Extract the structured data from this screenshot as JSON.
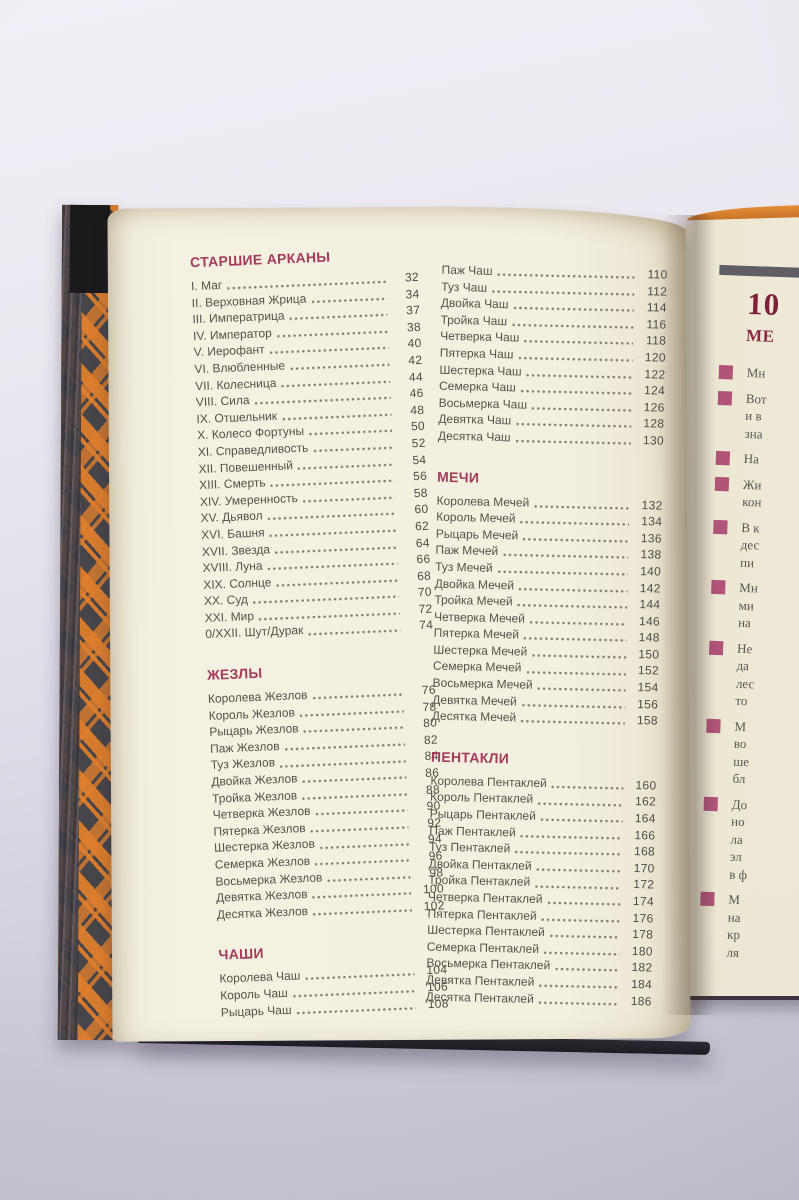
{
  "photo": {
    "background_top": "#f1eff6",
    "background_bottom": "#c3c0cf"
  },
  "book": {
    "page_color": "#f4f0df",
    "next_page_color": "#ece7d3",
    "cover": {
      "plaid_orange": "#dd7e2d",
      "plaid_base": "#46454a",
      "spine_black": "#1a191b",
      "top_edge_orange": "#d9822f"
    }
  },
  "toc": {
    "accent_color": "#a53a5b",
    "text_color": "#55524c",
    "columns": [
      {
        "sections": [
          {
            "title": "СТАРШИЕ АРКАНЫ",
            "items": [
              {
                "label": "I. Маг",
                "page": "32"
              },
              {
                "label": "II. Верховная Жрица",
                "page": "34"
              },
              {
                "label": "III. Императрица",
                "page": "37"
              },
              {
                "label": "IV. Император",
                "page": "38"
              },
              {
                "label": "V. Иерофант",
                "page": "40"
              },
              {
                "label": "VI. Влюбленные",
                "page": "42"
              },
              {
                "label": "VII. Колесница",
                "page": "44"
              },
              {
                "label": "VIII. Сила",
                "page": "46"
              },
              {
                "label": "IX. Отшельник",
                "page": "48"
              },
              {
                "label": "X. Колесо Фортуны",
                "page": "50"
              },
              {
                "label": "XI. Справедливость",
                "page": "52"
              },
              {
                "label": "XII. Повешенный",
                "page": "54"
              },
              {
                "label": "XIII. Смерть",
                "page": "56"
              },
              {
                "label": "XIV. Умеренность",
                "page": "58"
              },
              {
                "label": "XV. Дьявол",
                "page": "60"
              },
              {
                "label": "XVI. Башня",
                "page": "62"
              },
              {
                "label": "XVII. Звезда",
                "page": "64"
              },
              {
                "label": "XVIII. Луна",
                "page": "66"
              },
              {
                "label": "XIX. Солнце",
                "page": "68"
              },
              {
                "label": "XX. Суд",
                "page": "70"
              },
              {
                "label": "XXI. Мир",
                "page": "72"
              },
              {
                "label": "0/XXII. Шут/Дурак",
                "page": "74"
              }
            ]
          },
          {
            "title": "ЖЕЗЛЫ",
            "items": [
              {
                "label": "Королева Жезлов",
                "page": "76"
              },
              {
                "label": "Король Жезлов",
                "page": "78"
              },
              {
                "label": "Рыцарь Жезлов",
                "page": "80"
              },
              {
                "label": "Паж Жезлов",
                "page": "82"
              },
              {
                "label": "Туз Жезлов",
                "page": "84"
              },
              {
                "label": "Двойка Жезлов",
                "page": "86"
              },
              {
                "label": "Тройка Жезлов",
                "page": "88"
              },
              {
                "label": "Четверка Жезлов",
                "page": "90"
              },
              {
                "label": "Пятерка Жезлов",
                "page": "92"
              },
              {
                "label": "Шестерка Жезлов",
                "page": "94"
              },
              {
                "label": "Семерка Жезлов",
                "page": "96"
              },
              {
                "label": "Восьмерка Жезлов",
                "page": "98"
              },
              {
                "label": "Девятка Жезлов",
                "page": "100"
              },
              {
                "label": "Десятка Жезлов",
                "page": "102"
              }
            ]
          },
          {
            "title": "ЧАШИ",
            "items": [
              {
                "label": "Королева Чаш",
                "page": "104"
              },
              {
                "label": "Король Чаш",
                "page": "106"
              },
              {
                "label": "Рыцарь Чаш",
                "page": "108"
              }
            ]
          }
        ]
      },
      {
        "sections": [
          {
            "title": "",
            "items": [
              {
                "label": "Паж Чаш",
                "page": "110"
              },
              {
                "label": "Туз Чаш",
                "page": "112"
              },
              {
                "label": "Двойка Чаш",
                "page": "114"
              },
              {
                "label": "Тройка Чаш",
                "page": "116"
              },
              {
                "label": "Четверка Чаш",
                "page": "118"
              },
              {
                "label": "Пятерка Чаш",
                "page": "120"
              },
              {
                "label": "Шестерка Чаш",
                "page": "122"
              },
              {
                "label": "Семерка Чаш",
                "page": "124"
              },
              {
                "label": "Восьмерка Чаш",
                "page": "126"
              },
              {
                "label": "Девятка Чаш",
                "page": "128"
              },
              {
                "label": "Десятка Чаш",
                "page": "130"
              }
            ]
          },
          {
            "title": "МЕЧИ",
            "items": [
              {
                "label": "Королева Мечей",
                "page": "132"
              },
              {
                "label": "Король Мечей",
                "page": "134"
              },
              {
                "label": "Рыцарь Мечей",
                "page": "136"
              },
              {
                "label": "Паж Мечей",
                "page": "138"
              },
              {
                "label": "Туз Мечей",
                "page": "140"
              },
              {
                "label": "Двойка Мечей",
                "page": "142"
              },
              {
                "label": "Тройка Мечей",
                "page": "144"
              },
              {
                "label": "Четверка Мечей",
                "page": "146"
              },
              {
                "label": "Пятерка Мечей",
                "page": "148"
              },
              {
                "label": "Шестерка Мечей",
                "page": "150"
              },
              {
                "label": "Семерка Мечей",
                "page": "152"
              },
              {
                "label": "Восьмерка Мечей",
                "page": "154"
              },
              {
                "label": "Девятка Мечей",
                "page": "156"
              },
              {
                "label": "Десятка Мечей",
                "page": "158"
              }
            ]
          },
          {
            "title": "ПЕНТАКЛИ",
            "items": [
              {
                "label": "Королева Пентаклей",
                "page": "160"
              },
              {
                "label": "Король Пентаклей",
                "page": "162"
              },
              {
                "label": "Рыцарь Пентаклей",
                "page": "164"
              },
              {
                "label": "Паж Пентаклей",
                "page": "166"
              },
              {
                "label": "Туз Пентаклей",
                "page": "168"
              },
              {
                "label": "Двойка Пентаклей",
                "page": "170"
              },
              {
                "label": "Тройка Пентаклей",
                "page": "172"
              },
              {
                "label": "Четверка Пентаклей",
                "page": "174"
              },
              {
                "label": "Пятерка Пентаклей",
                "page": "176"
              },
              {
                "label": "Шестерка Пентаклей",
                "page": "178"
              },
              {
                "label": "Семерка Пентаклей",
                "page": "180"
              },
              {
                "label": "Восьмерка Пентаклей",
                "page": "182"
              },
              {
                "label": "Девятка Пентаклей",
                "page": "184"
              },
              {
                "label": "Десятка Пентаклей",
                "page": "186"
              }
            ]
          }
        ]
      }
    ]
  },
  "next_page": {
    "bar_color": "#5f5e67",
    "chapter_number": "10",
    "chapter_title_fragment": "МЕ",
    "chapter_number_color": "#7e2138",
    "bullet_color": "#b0547a",
    "bullets": [
      {
        "text": "Мн"
      },
      {
        "text": "Вот\nи в\nзна"
      },
      {
        "text": "На"
      },
      {
        "text": "Жи\nкон"
      },
      {
        "text": "В к\nдес\nпи"
      },
      {
        "text": "Мн\nми\nна"
      },
      {
        "text": "Не\nда\nлес\nто"
      },
      {
        "text": "М\nво\nше\nбл"
      },
      {
        "text": "До\nно\nла\nэл\nв ф"
      },
      {
        "text": "М\nна\nкр\nля"
      }
    ]
  }
}
